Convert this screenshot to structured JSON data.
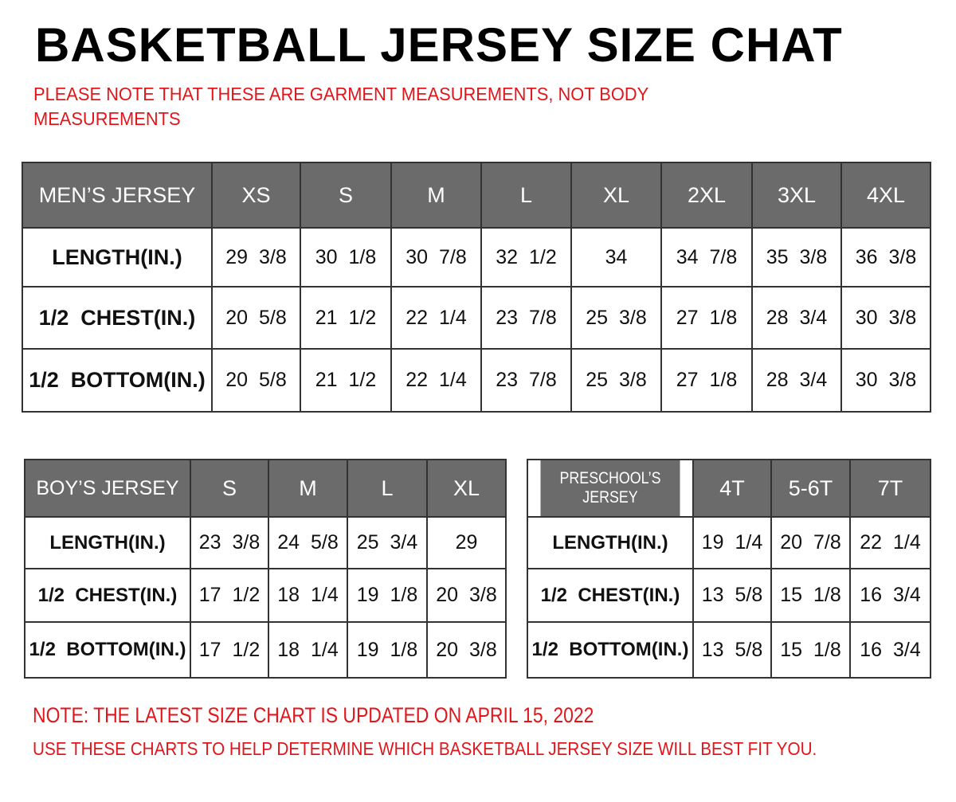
{
  "title": "BASKETBALL JERSEY SIZE CHAT",
  "subtitle": "PLEASE NOTE THAT THESE ARE GARMENT MEASUREMENTS, NOT BODY MEASUREMENTS",
  "colors": {
    "header_bg": "#6b6b6b",
    "note_red": "#e0161b"
  },
  "mens": {
    "header": [
      "MEN’S JERSEY",
      "XS",
      "S",
      "M",
      "L",
      "XL",
      "2XL",
      "3XL",
      "4XL"
    ],
    "rows": [
      [
        "LENGTH(IN.)",
        "29  3/8",
        "30  1/8",
        "30  7/8",
        "32  1/2",
        "34",
        "34  7/8",
        "35  3/8",
        "36  3/8"
      ],
      [
        "1/2  CHEST(IN.)",
        "20  5/8",
        "21  1/2",
        "22  1/4",
        "23  7/8",
        "25  3/8",
        "27  1/8",
        "28  3/4",
        "30  3/8"
      ],
      [
        "1/2  BOTTOM(IN.)",
        "20  5/8",
        "21  1/2",
        "22  1/4",
        "23  7/8",
        "25  3/8",
        "27  1/8",
        "28  3/4",
        "30  3/8"
      ]
    ]
  },
  "boys": {
    "header": [
      "BOY’S JERSEY",
      "S",
      "M",
      "L",
      "XL"
    ],
    "rows": [
      [
        "LENGTH(IN.)",
        "23  3/8",
        "24  5/8",
        "25  3/4",
        "29"
      ],
      [
        "1/2  CHEST(IN.)",
        "17  1/2",
        "18  1/4",
        "19  1/8",
        "20  3/8"
      ],
      [
        "1/2  BOTTOM(IN.)",
        "17  1/2",
        "18  1/4",
        "19  1/8",
        "20  3/8"
      ]
    ]
  },
  "preschool": {
    "header": [
      "PRESCHOOL’S JERSEY",
      "4T",
      "5-6T",
      "7T"
    ],
    "rows": [
      [
        "LENGTH(IN.)",
        "19  1/4",
        "20  7/8",
        "22  1/4"
      ],
      [
        "1/2  CHEST(IN.)",
        "13  5/8",
        "15  1/8",
        "16  3/4"
      ],
      [
        "1/2  BOTTOM(IN.)",
        "13  5/8",
        "15  1/8",
        "16  3/4"
      ]
    ]
  },
  "notes": [
    "NOTE: THE LATEST SIZE CHART IS UPDATED ON APRIL 15, 2022",
    "USE THESE CHARTS TO HELP DETERMINE WHICH  BASKETBALL JERSEY  SIZE WILL BEST FIT YOU."
  ]
}
